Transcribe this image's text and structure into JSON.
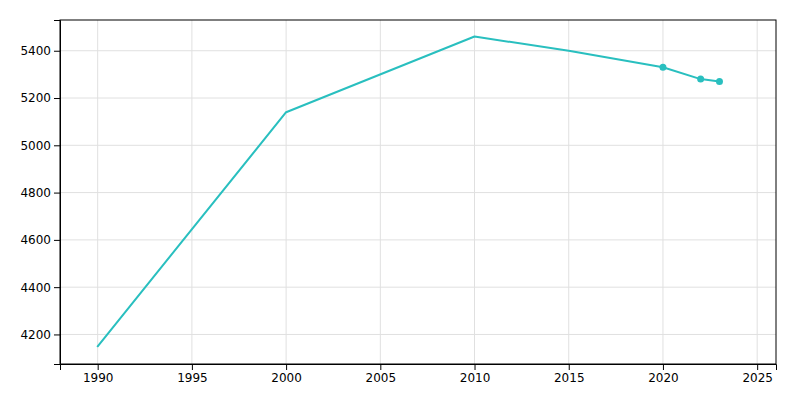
{
  "chart_data": {
    "type": "line",
    "x": [
      1990,
      2000,
      2010,
      2015,
      2020,
      2022,
      2023
    ],
    "series": [
      {
        "type": "line",
        "color": "#29bfbf",
        "values": [
          4150,
          5140,
          5460,
          5400,
          5330,
          5280,
          5270
        ]
      },
      {
        "type": "scatter",
        "marker": "circle",
        "color": "#29bfbf",
        "values": [
          null,
          null,
          null,
          null,
          5330,
          5280,
          5270
        ]
      }
    ],
    "xlim": [
      1988,
      2026
    ],
    "ylim": [
      4075,
      5530
    ],
    "xticks": [
      1990,
      1995,
      2000,
      2005,
      2010,
      2015,
      2020,
      2025
    ],
    "yticks": [
      4200,
      4400,
      4600,
      4800,
      5000,
      5200,
      5400
    ],
    "grid": true
  }
}
